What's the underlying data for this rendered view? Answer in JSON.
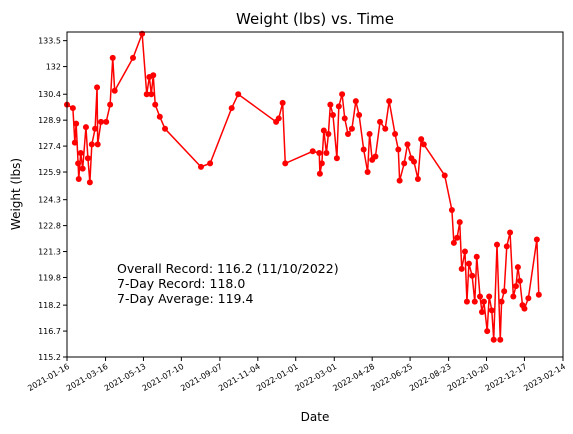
{
  "chart_data": {
    "type": "line",
    "title": "Weight (lbs) vs. Time",
    "xlabel": "Date",
    "ylabel": "Weight (lbs)",
    "x": [
      "2021-01-16",
      "2021-01-25",
      "2021-01-28",
      "2021-01-30",
      "2021-02-02",
      "2021-02-03",
      "2021-02-06",
      "2021-02-09",
      "2021-02-14",
      "2021-02-17",
      "2021-02-20",
      "2021-02-23",
      "2021-02-28",
      "2021-03-03",
      "2021-03-04",
      "2021-03-09",
      "2021-03-17",
      "2021-03-23",
      "2021-03-27",
      "2021-03-30",
      "2021-04-27",
      "2021-05-11",
      "2021-05-18",
      "2021-05-22",
      "2021-05-25",
      "2021-05-28",
      "2021-05-31",
      "2021-06-07",
      "2021-06-15",
      "2021-08-09",
      "2021-08-23",
      "2021-09-25",
      "2021-10-05",
      "2021-12-02",
      "2021-12-06",
      "2021-12-12",
      "2021-12-16",
      "2022-01-27",
      "2022-02-06",
      "2022-02-07",
      "2022-02-10",
      "2022-02-13",
      "2022-02-17",
      "2022-02-20",
      "2022-02-23",
      "2022-02-27",
      "2022-03-05",
      "2022-03-08",
      "2022-03-13",
      "2022-03-17",
      "2022-03-22",
      "2022-03-28",
      "2022-04-03",
      "2022-04-08",
      "2022-04-15",
      "2022-04-21",
      "2022-04-24",
      "2022-04-28",
      "2022-05-03",
      "2022-05-10",
      "2022-05-18",
      "2022-05-24",
      "2022-06-02",
      "2022-06-07",
      "2022-06-09",
      "2022-06-16",
      "2022-06-21",
      "2022-06-27",
      "2022-07-01",
      "2022-07-07",
      "2022-07-12",
      "2022-07-16",
      "2022-08-17",
      "2022-08-28",
      "2022-08-31",
      "2022-09-05",
      "2022-09-09",
      "2022-09-12",
      "2022-09-17",
      "2022-09-20",
      "2022-09-23",
      "2022-09-28",
      "2022-10-02",
      "2022-10-05",
      "2022-10-10",
      "2022-10-13",
      "2022-10-16",
      "2022-10-21",
      "2022-10-24",
      "2022-10-28",
      "2022-10-31",
      "2022-11-05",
      "2022-11-10",
      "2022-11-12",
      "2022-11-16",
      "2022-11-20",
      "2022-11-25",
      "2022-11-30",
      "2022-12-04",
      "2022-12-07",
      "2022-12-10",
      "2022-12-14",
      "2022-12-17",
      "2022-12-23",
      "2023-01-05",
      "2023-01-08"
    ],
    "values": [
      129.8,
      129.6,
      127.6,
      128.7,
      126.4,
      125.5,
      127.0,
      126.1,
      128.5,
      126.7,
      125.3,
      127.5,
      128.4,
      130.8,
      127.5,
      128.8,
      128.8,
      129.8,
      132.5,
      130.6,
      132.5,
      133.9,
      130.4,
      131.4,
      130.4,
      131.5,
      129.8,
      129.1,
      128.4,
      126.2,
      126.4,
      129.6,
      130.4,
      128.8,
      129.0,
      129.9,
      126.4,
      127.1,
      127.0,
      125.8,
      126.4,
      128.3,
      127.0,
      128.1,
      129.8,
      129.2,
      126.7,
      129.7,
      130.4,
      129.0,
      128.1,
      128.4,
      130.0,
      129.2,
      127.2,
      125.9,
      128.1,
      126.6,
      126.8,
      128.8,
      128.4,
      130.0,
      128.1,
      127.2,
      125.4,
      126.4,
      127.5,
      126.7,
      126.5,
      125.5,
      127.8,
      127.5,
      125.7,
      123.7,
      121.8,
      122.1,
      123.0,
      120.3,
      121.3,
      118.4,
      120.6,
      119.9,
      118.4,
      121.0,
      118.7,
      117.8,
      118.4,
      116.7,
      118.7,
      117.9,
      116.2,
      121.7,
      116.2,
      118.4,
      119.0,
      121.6,
      122.4,
      118.7,
      119.3,
      120.4,
      119.6,
      118.2,
      118.0,
      118.6,
      122.0,
      118.8
    ],
    "color": "#ff0000",
    "xlim": [
      "2021-01-16",
      "2023-02-14"
    ],
    "xticks": [
      "2021-01-16",
      "2021-03-16",
      "2021-05-13",
      "2021-07-10",
      "2021-09-07",
      "2021-11-04",
      "2022-01-01",
      "2022-03-01",
      "2022-04-28",
      "2022-06-25",
      "2022-08-23",
      "2022-10-20",
      "2022-12-17",
      "2023-02-14"
    ],
    "ylim": [
      115.2,
      134.0
    ],
    "yticks": [
      115.2,
      116.7,
      118.2,
      119.8,
      121.3,
      122.8,
      124.3,
      125.9,
      127.4,
      128.9,
      130.4,
      132.0,
      133.5
    ],
    "annotations": [
      "Overall Record: 116.2 (11/10/2022)",
      "7-Day Record: 118.0",
      "7-Day Average: 119.4"
    ]
  }
}
